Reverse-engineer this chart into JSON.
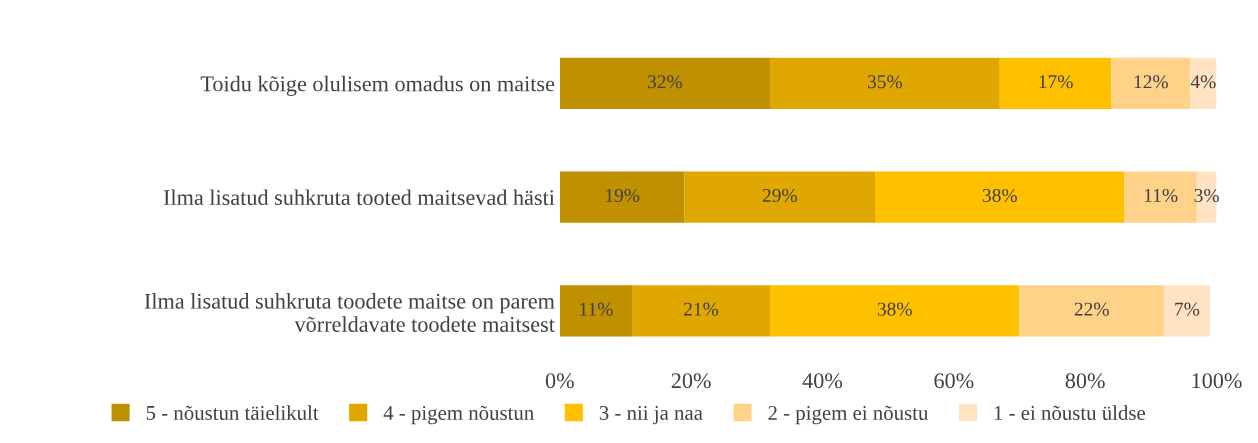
{
  "chart_data": {
    "type": "bar",
    "orientation": "horizontal",
    "stacked": true,
    "categories": [
      "Toidu kõige olulisem omadus on maitse",
      "Ilma lisatud suhkruta tooted maitsevad hästi",
      "Ilma lisatud suhkruta toodete maitse on parem\nvõrreldavate toodete maitsest"
    ],
    "series": [
      {
        "name": "5 - nõustun täielikult",
        "color": "#bf9000",
        "values": [
          32,
          19,
          11
        ],
        "value_labels": [
          "32%",
          "19%",
          "11%"
        ]
      },
      {
        "name": "4 - pigem nõustun",
        "color": "#dfa700",
        "values": [
          35,
          29,
          21
        ],
        "value_labels": [
          "35%",
          "29%",
          "21%"
        ]
      },
      {
        "name": "3 - nii ja naa",
        "color": "#ffc000",
        "values": [
          17,
          38,
          38
        ],
        "value_labels": [
          "17%",
          "38%",
          "38%"
        ]
      },
      {
        "name": "2 - pigem ei nõustu",
        "color": "#ffd28a",
        "values": [
          12,
          11,
          22
        ],
        "value_labels": [
          "12%",
          "11%",
          "22%"
        ]
      },
      {
        "name": "1 - ei nõustu üldse",
        "color": "#ffe3c2",
        "values": [
          4,
          3,
          7
        ],
        "value_labels": [
          "4%",
          "3%",
          "7%"
        ]
      }
    ],
    "xlim": [
      0,
      100
    ],
    "xticks": [
      {
        "value": 0,
        "label": "0%"
      },
      {
        "value": 20,
        "label": "20%"
      },
      {
        "value": 40,
        "label": "40%"
      },
      {
        "value": 60,
        "label": "60%"
      },
      {
        "value": 80,
        "label": "80%"
      },
      {
        "value": 100,
        "label": "100%"
      }
    ],
    "grid": false,
    "legend": "bottom"
  }
}
